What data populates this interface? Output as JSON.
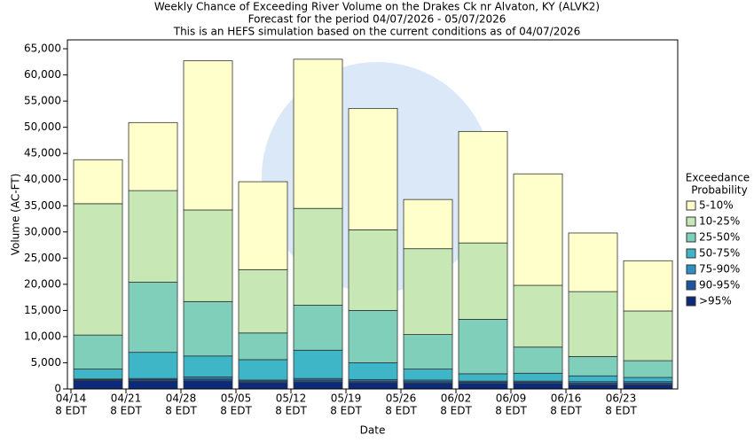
{
  "chart_data": {
    "type": "stacked_bar",
    "title": [
      "Weekly Chance of Exceeding River Volume on the Drakes Ck nr Alvaton, KY (ALVK2)",
      "Forecast for the period 04/07/2026 - 05/07/2026",
      "This is an HEFS simulation based on the current conditions as of 04/07/2026"
    ],
    "x_label": "Date",
    "y_label": "Volume (AC-FT)",
    "categories": [
      "04/14",
      "04/21",
      "04/28",
      "05/05",
      "05/12",
      "05/19",
      "05/26",
      "06/02",
      "06/09",
      "06/16",
      "06/23"
    ],
    "category_sublabel": "8 EDT",
    "legend_title": [
      "Exceedance",
      "Probability"
    ],
    "legend_position": "right",
    "series": [
      {
        "name": ">95%",
        "color": "#0c2a7a",
        "values": [
          1600,
          1500,
          1500,
          1200,
          1300,
          1200,
          1100,
          1000,
          1000,
          800,
          800
        ]
      },
      {
        "name": "90-95%",
        "color": "#1f55a0",
        "values": [
          200,
          300,
          400,
          300,
          400,
          300,
          300,
          300,
          300,
          300,
          300
        ]
      },
      {
        "name": "75-90%",
        "color": "#2f8fc0",
        "values": [
          100,
          200,
          400,
          200,
          300,
          300,
          300,
          200,
          200,
          300,
          300
        ]
      },
      {
        "name": "50-75%",
        "color": "#3fb5c8",
        "values": [
          1900,
          5000,
          4000,
          3900,
          5400,
          3200,
          2100,
          1400,
          1500,
          1100,
          800
        ]
      },
      {
        "name": "25-50%",
        "color": "#7fcfbb",
        "values": [
          6500,
          13400,
          10400,
          5100,
          8600,
          10000,
          6600,
          10400,
          5000,
          3700,
          3200
        ]
      },
      {
        "name": "10-25%",
        "color": "#c7e8b5",
        "values": [
          25100,
          17500,
          17500,
          12100,
          18500,
          15400,
          16400,
          14600,
          11800,
          12400,
          9500
        ]
      },
      {
        "name": "5-10%",
        "color": "#ffffcc",
        "values": [
          8400,
          13000,
          28500,
          16800,
          28500,
          23200,
          9400,
          21300,
          21300,
          11200,
          9600
        ]
      }
    ],
    "ylim": [
      0,
      66700
    ],
    "yticks": [
      0,
      {
        "value": 5000,
        "label": "5,000"
      },
      {
        "value": 10000,
        "label": "10,000"
      },
      {
        "value": 15000,
        "label": "15,000"
      },
      {
        "value": 20000,
        "label": "20,000"
      },
      {
        "value": 25000,
        "label": "25,000"
      },
      {
        "value": 30000,
        "label": "30,000"
      },
      {
        "value": 35000,
        "label": "35,000"
      },
      {
        "value": 40000,
        "label": "40,000"
      },
      {
        "value": 45000,
        "label": "45,000"
      },
      {
        "value": 50000,
        "label": "50,000"
      },
      {
        "value": 55000,
        "label": "55,000"
      },
      {
        "value": 60000,
        "label": "60,000"
      },
      {
        "value": 65000,
        "label": "65,000"
      }
    ],
    "grid": false
  }
}
